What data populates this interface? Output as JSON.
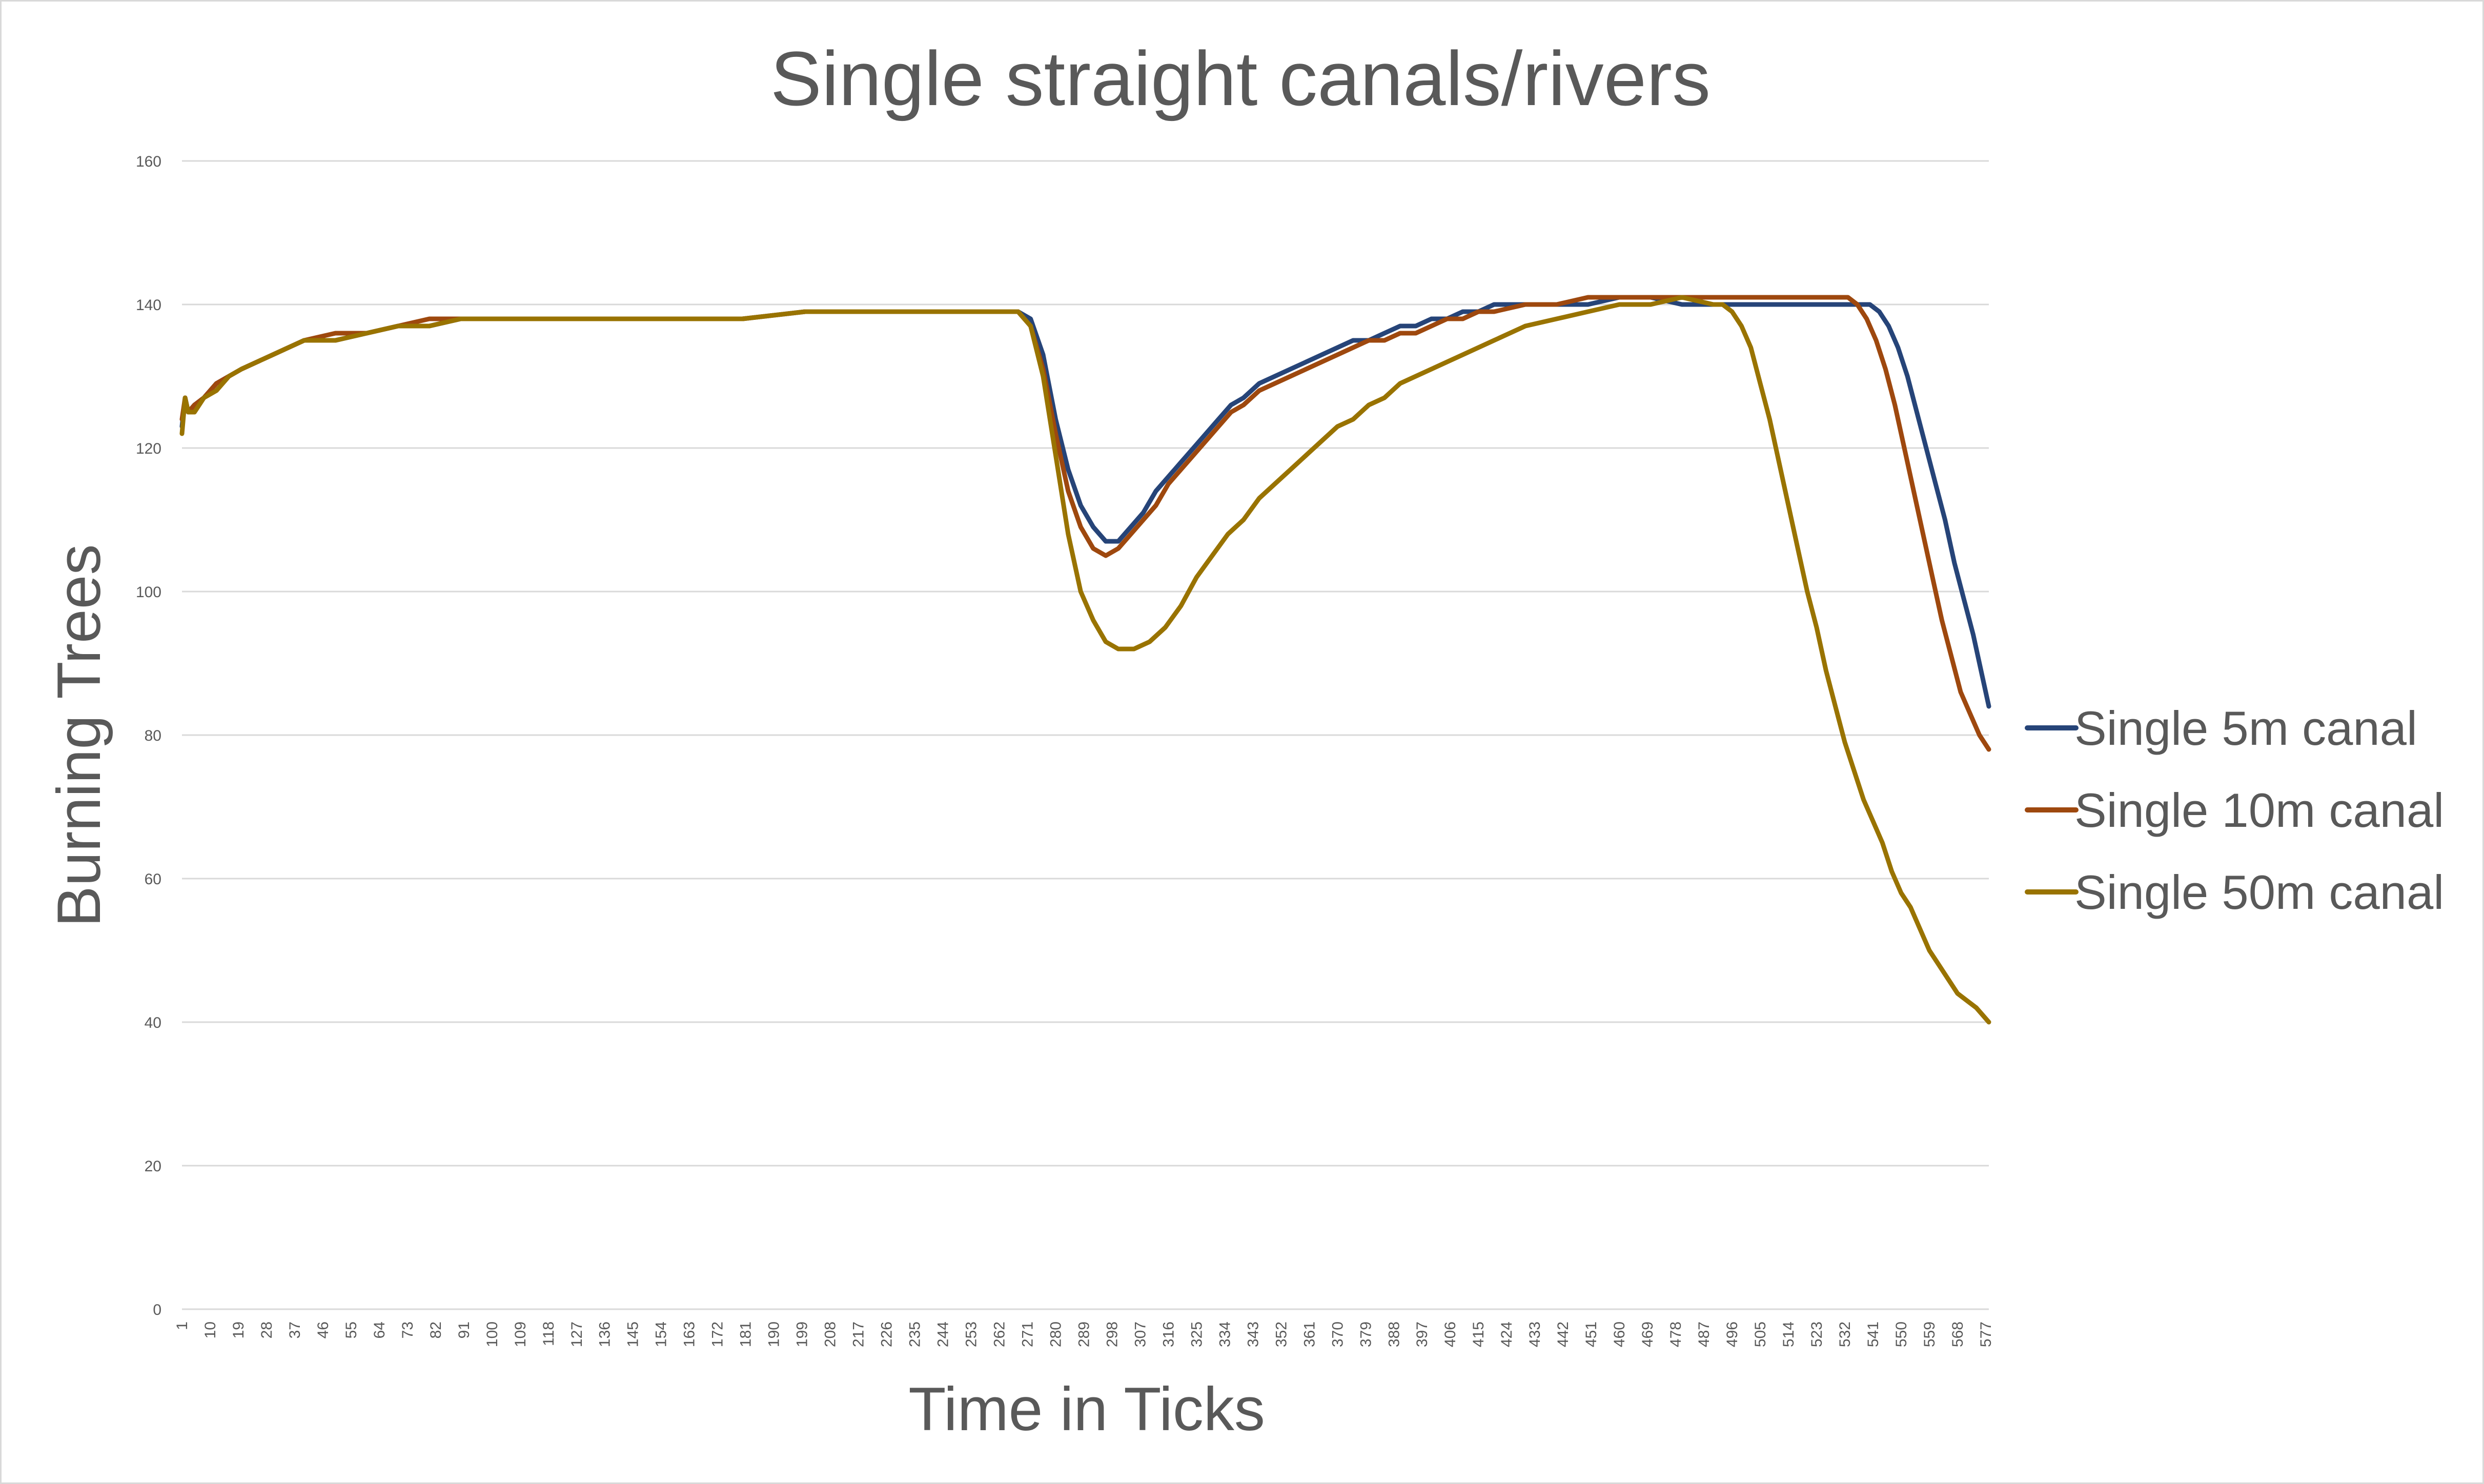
{
  "chart_data": {
    "type": "line",
    "title": "Single straight canals/rivers",
    "xlabel": "Time in Ticks",
    "ylabel": "Burning Trees",
    "ylim": [
      0,
      160
    ],
    "yticks": [
      0,
      20,
      40,
      60,
      80,
      100,
      120,
      140,
      160
    ],
    "xlim": [
      1,
      578
    ],
    "xtick_labels": [
      1,
      10,
      19,
      28,
      37,
      46,
      55,
      64,
      73,
      82,
      91,
      100,
      109,
      118,
      127,
      136,
      145,
      154,
      163,
      172,
      181,
      190,
      199,
      208,
      217,
      226,
      235,
      244,
      253,
      262,
      271,
      280,
      289,
      298,
      307,
      316,
      325,
      334,
      343,
      352,
      361,
      370,
      379,
      388,
      397,
      406,
      415,
      424,
      433,
      442,
      451,
      460,
      469,
      478,
      487,
      496,
      505,
      514,
      523,
      532,
      541,
      550,
      559,
      568,
      577
    ],
    "grid": true,
    "legend_position": "right",
    "series": [
      {
        "name": "Single 5m canal",
        "color": "#264478",
        "x": [
          1,
          2,
          3,
          5,
          8,
          12,
          16,
          20,
          25,
          30,
          35,
          40,
          50,
          60,
          70,
          80,
          90,
          100,
          120,
          140,
          160,
          180,
          200,
          220,
          240,
          260,
          268,
          272,
          276,
          280,
          284,
          288,
          292,
          296,
          300,
          304,
          308,
          312,
          316,
          320,
          324,
          328,
          332,
          336,
          340,
          345,
          350,
          355,
          360,
          365,
          370,
          375,
          380,
          385,
          390,
          395,
          400,
          405,
          410,
          415,
          420,
          430,
          440,
          450,
          460,
          470,
          480,
          490,
          500,
          510,
          520,
          530,
          536,
          540,
          543,
          546,
          549,
          552,
          555,
          558,
          561,
          564,
          567,
          570,
          573,
          576,
          578
        ],
        "y": [
          123,
          127,
          125,
          126,
          127,
          129,
          130,
          131,
          132,
          133,
          134,
          135,
          135,
          136,
          137,
          137,
          138,
          138,
          138,
          138,
          138,
          138,
          139,
          139,
          139,
          139,
          139,
          138,
          133,
          124,
          117,
          112,
          109,
          107,
          107,
          109,
          111,
          114,
          116,
          118,
          120,
          122,
          124,
          126,
          127,
          129,
          130,
          131,
          132,
          133,
          134,
          135,
          135,
          136,
          137,
          137,
          138,
          138,
          139,
          139,
          140,
          140,
          140,
          140,
          141,
          141,
          140,
          140,
          140,
          140,
          140,
          140,
          140,
          140,
          139,
          137,
          134,
          130,
          125,
          120,
          115,
          110,
          104,
          99,
          94,
          88,
          84
        ]
      },
      {
        "name": "Single 10m canal",
        "color": "#9e480e",
        "x": [
          1,
          2,
          3,
          5,
          8,
          12,
          16,
          20,
          25,
          30,
          35,
          40,
          50,
          60,
          70,
          80,
          90,
          100,
          120,
          140,
          160,
          180,
          200,
          220,
          240,
          260,
          268,
          272,
          276,
          280,
          284,
          288,
          292,
          296,
          300,
          304,
          308,
          312,
          316,
          320,
          324,
          328,
          332,
          336,
          340,
          345,
          350,
          355,
          360,
          365,
          370,
          375,
          380,
          385,
          390,
          395,
          400,
          405,
          410,
          415,
          420,
          430,
          440,
          450,
          460,
          470,
          480,
          490,
          500,
          510,
          520,
          530,
          533,
          536,
          539,
          542,
          545,
          548,
          551,
          554,
          557,
          560,
          563,
          566,
          569,
          572,
          575,
          578
        ],
        "y": [
          124,
          127,
          125,
          126,
          127,
          129,
          130,
          131,
          132,
          133,
          134,
          135,
          136,
          136,
          137,
          138,
          138,
          138,
          138,
          138,
          138,
          138,
          139,
          139,
          139,
          139,
          139,
          137,
          131,
          122,
          114,
          109,
          106,
          105,
          106,
          108,
          110,
          112,
          115,
          117,
          119,
          121,
          123,
          125,
          126,
          128,
          129,
          130,
          131,
          132,
          133,
          134,
          135,
          135,
          136,
          136,
          137,
          138,
          138,
          139,
          139,
          140,
          140,
          141,
          141,
          141,
          141,
          141,
          141,
          141,
          141,
          141,
          141,
          140,
          138,
          135,
          131,
          126,
          120,
          114,
          108,
          102,
          96,
          91,
          86,
          83,
          80,
          78
        ]
      },
      {
        "name": "Single 50m canal",
        "color": "#997300",
        "x": [
          1,
          2,
          3,
          5,
          8,
          12,
          16,
          20,
          25,
          30,
          35,
          40,
          50,
          60,
          70,
          80,
          90,
          100,
          120,
          140,
          160,
          180,
          200,
          220,
          240,
          260,
          268,
          272,
          276,
          280,
          284,
          288,
          292,
          296,
          300,
          305,
          310,
          315,
          320,
          325,
          330,
          335,
          340,
          345,
          350,
          355,
          360,
          365,
          370,
          375,
          380,
          385,
          390,
          395,
          400,
          405,
          410,
          415,
          420,
          425,
          430,
          440,
          450,
          460,
          470,
          480,
          490,
          493,
          496,
          499,
          502,
          505,
          508,
          511,
          514,
          517,
          520,
          523,
          526,
          529,
          532,
          535,
          538,
          541,
          544,
          547,
          550,
          553,
          556,
          559,
          562,
          565,
          568,
          571,
          574,
          578
        ],
        "y": [
          122,
          127,
          125,
          125,
          127,
          128,
          130,
          131,
          132,
          133,
          134,
          135,
          135,
          136,
          137,
          137,
          138,
          138,
          138,
          138,
          138,
          138,
          139,
          139,
          139,
          139,
          139,
          137,
          130,
          119,
          108,
          100,
          96,
          93,
          92,
          92,
          93,
          95,
          98,
          102,
          105,
          108,
          110,
          113,
          115,
          117,
          119,
          121,
          123,
          124,
          126,
          127,
          129,
          130,
          131,
          132,
          133,
          134,
          135,
          136,
          137,
          138,
          139,
          140,
          140,
          141,
          140,
          140,
          139,
          137,
          134,
          129,
          124,
          118,
          112,
          106,
          100,
          95,
          89,
          84,
          79,
          75,
          71,
          68,
          65,
          61,
          58,
          56,
          53,
          50,
          48,
          46,
          44,
          43,
          42,
          40
        ]
      }
    ]
  }
}
